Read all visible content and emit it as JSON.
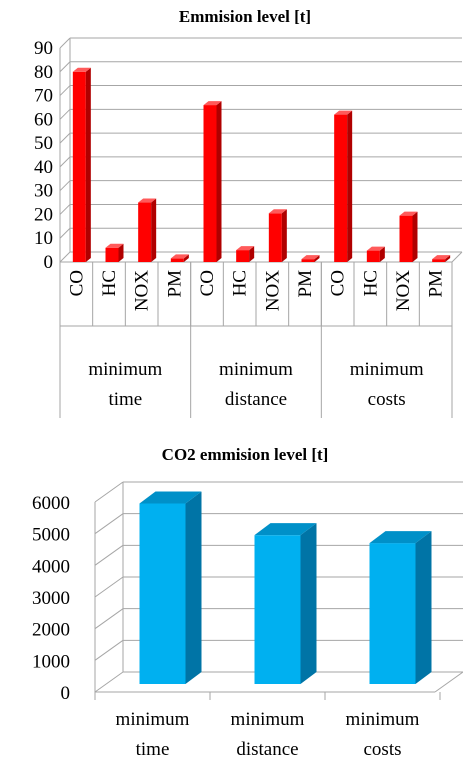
{
  "charts": {
    "emission": {
      "title": "Emmision level [t]",
      "y_ticks": [
        "0",
        "10",
        "20",
        "30",
        "40",
        "50",
        "60",
        "70",
        "80",
        "90"
      ],
      "sub_labels": [
        "CO",
        "HC",
        "NOX",
        "PM"
      ],
      "groups": [
        {
          "line1": "minimum",
          "line2": "time"
        },
        {
          "line1": "minimum",
          "line2": "distance"
        },
        {
          "line1": "minimum",
          "line2": "costs"
        }
      ]
    },
    "co2": {
      "title": "CO2 emmision level [t]",
      "y_ticks": [
        "0",
        "1000",
        "2000",
        "3000",
        "4000",
        "5000",
        "6000"
      ],
      "categories": [
        {
          "line1": "minimum",
          "line2": "time"
        },
        {
          "line1": "minimum",
          "line2": "distance"
        },
        {
          "line1": "minimum",
          "line2": "costs"
        }
      ]
    }
  },
  "colors": {
    "emission_front": "#ff0000",
    "emission_side": "#b00000",
    "emission_top": "#ff5a5a",
    "co2_front": "#00b0f0",
    "co2_side": "#0074a6",
    "co2_top": "#0090c8",
    "grid": "#a6a6a6"
  },
  "chart_data": [
    {
      "type": "bar",
      "title": "Emmision level [t]",
      "xlabel": "",
      "ylabel": "",
      "ylim": [
        0,
        90
      ],
      "categories": [
        "CO",
        "HC",
        "NOX",
        "PM",
        "CO",
        "HC",
        "NOX",
        "PM",
        "CO",
        "HC",
        "NOX",
        "PM"
      ],
      "groups": [
        "minimum time",
        "minimum distance",
        "minimum costs"
      ],
      "values": [
        80,
        6,
        25,
        1.5,
        66,
        5,
        20.5,
        1.2,
        62,
        4.8,
        19.5,
        1.2
      ],
      "grid": true,
      "legend": "none"
    },
    {
      "type": "bar",
      "title": "CO2 emmision level [t]",
      "xlabel": "",
      "ylabel": "",
      "ylim": [
        0,
        6000
      ],
      "categories": [
        "minimum time",
        "minimum distance",
        "minimum costs"
      ],
      "values": [
        5700,
        4700,
        4450
      ],
      "grid": true,
      "legend": "none"
    }
  ]
}
